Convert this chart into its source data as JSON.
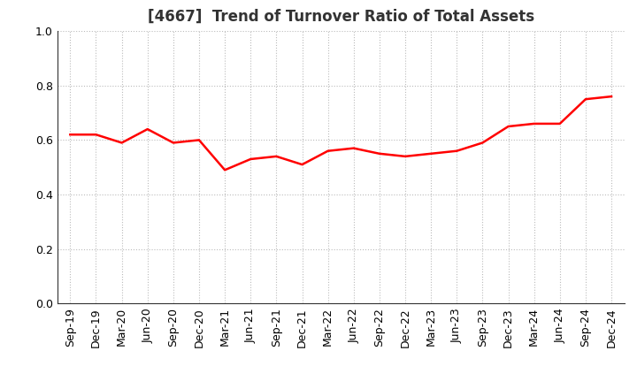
{
  "title": "[4667]  Trend of Turnover Ratio of Total Assets",
  "labels": [
    "Sep-19",
    "Dec-19",
    "Mar-20",
    "Jun-20",
    "Sep-20",
    "Dec-20",
    "Mar-21",
    "Jun-21",
    "Sep-21",
    "Dec-21",
    "Mar-22",
    "Jun-22",
    "Sep-22",
    "Dec-22",
    "Mar-23",
    "Jun-23",
    "Sep-23",
    "Dec-23",
    "Mar-24",
    "Jun-24",
    "Sep-24",
    "Dec-24"
  ],
  "values": [
    0.62,
    0.62,
    0.59,
    0.64,
    0.59,
    0.6,
    0.49,
    0.53,
    0.54,
    0.51,
    0.56,
    0.57,
    0.55,
    0.54,
    0.55,
    0.56,
    0.59,
    0.65,
    0.66,
    0.66,
    0.75,
    0.76
  ],
  "line_color": "#ff0000",
  "line_width": 1.8,
  "ylim": [
    0.0,
    1.0
  ],
  "yticks": [
    0.0,
    0.2,
    0.4,
    0.6,
    0.8,
    1.0
  ],
  "grid_color": "#bbbbbb",
  "background_color": "#ffffff",
  "title_fontsize": 12,
  "tick_fontsize": 9,
  "title_color": "#333333"
}
